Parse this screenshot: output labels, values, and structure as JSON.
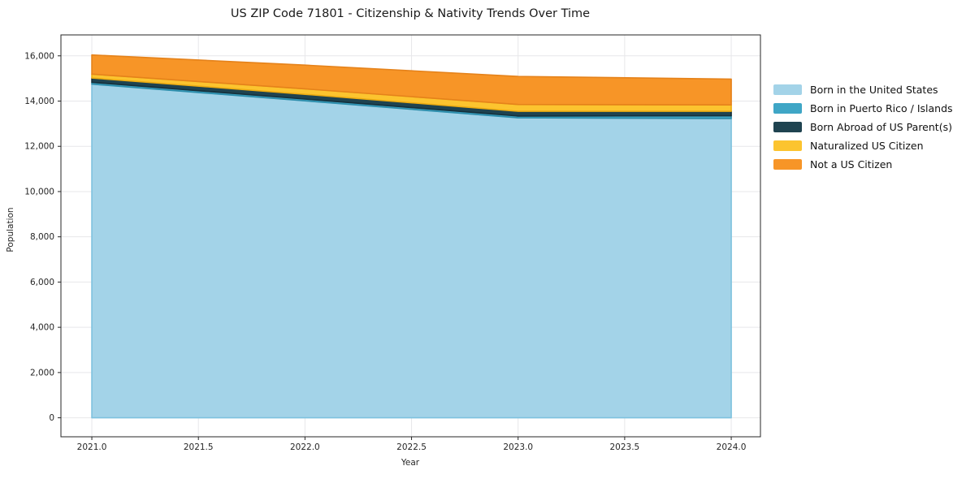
{
  "title": "US ZIP Code 71801 - Citizenship & Nativity Trends Over Time",
  "chart_data": {
    "type": "area",
    "stacked": true,
    "title": "US ZIP Code 71801 - Citizenship & Nativity Trends Over Time",
    "xlabel": "Year",
    "ylabel": "Population",
    "x": [
      2021,
      2022,
      2023,
      2024
    ],
    "series": [
      {
        "name": "Born in the United States",
        "color": "#a3d3e8",
        "edge_color": "#7ec2de",
        "values": [
          14750,
          14010,
          13260,
          13230
        ]
      },
      {
        "name": "Born in Puerto Rico / Islands",
        "color": "#3fa6c6",
        "edge_color": "#2d8dab",
        "values": [
          80,
          80,
          80,
          120
        ]
      },
      {
        "name": "Born Abroad of US Parent(s)",
        "color": "#1f4350",
        "edge_color": "#15303b",
        "values": [
          190,
          210,
          210,
          200
        ]
      },
      {
        "name": "Naturalized US Citizen",
        "color": "#fcc42f",
        "edge_color": "#edac12",
        "values": [
          170,
          240,
          300,
          280
        ]
      },
      {
        "name": "Not a US Citizen",
        "color": "#f79527",
        "edge_color": "#e5821a",
        "values": [
          850,
          1050,
          1240,
          1140
        ]
      }
    ],
    "totals": [
      16040,
      15590,
      15090,
      14970
    ],
    "x_ticks": [
      2021.0,
      2021.5,
      2022.0,
      2022.5,
      2023.0,
      2023.5,
      2024.0
    ],
    "x_tick_labels": [
      "2021.0",
      "2021.5",
      "2022.0",
      "2022.5",
      "2023.0",
      "2023.5",
      "2024.0"
    ],
    "y_ticks": [
      0,
      2000,
      4000,
      6000,
      8000,
      10000,
      12000,
      14000,
      16000
    ],
    "y_tick_labels": [
      "0",
      "2,000",
      "4,000",
      "6,000",
      "8,000",
      "10,000",
      "12,000",
      "14,000",
      "16,000"
    ],
    "xlim": [
      2020.855,
      2024.137
    ],
    "ylim": [
      -840,
      16925
    ],
    "grid": true,
    "legend_position": "right"
  }
}
